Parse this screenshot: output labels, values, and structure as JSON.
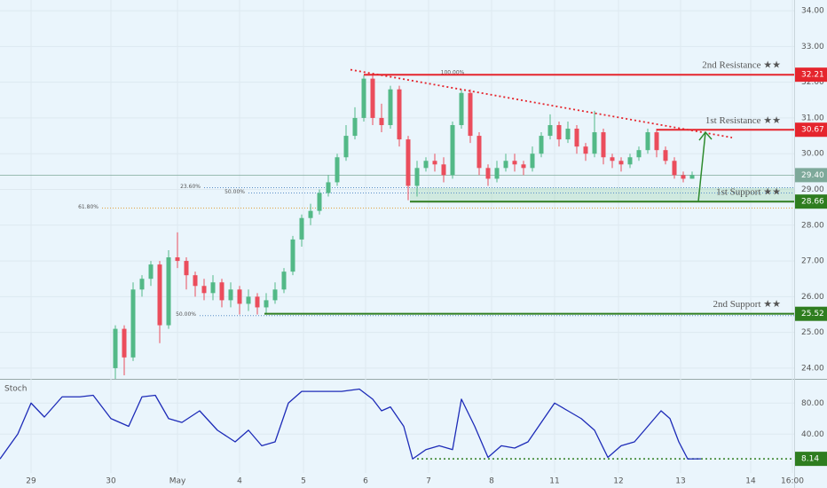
{
  "chart_data": [
    {
      "type": "candlestick",
      "xlim": [
        0,
        895
      ],
      "ylim": [
        23.7,
        34.3
      ],
      "xticks": [
        {
          "value": 35,
          "label": "29"
        },
        {
          "value": 125,
          "label": "30"
        },
        {
          "value": 200,
          "label": "May"
        },
        {
          "value": 270,
          "label": "4"
        },
        {
          "value": 342,
          "label": "5"
        },
        {
          "value": 412,
          "label": "6"
        },
        {
          "value": 483,
          "label": "7"
        },
        {
          "value": 554,
          "label": "8"
        },
        {
          "value": 625,
          "label": "11"
        },
        {
          "value": 697,
          "label": "12"
        },
        {
          "value": 767,
          "label": "13"
        },
        {
          "value": 846,
          "label": "14"
        },
        {
          "value": 893,
          "label": "16:00"
        }
      ],
      "yticks": [
        {
          "value": 34,
          "label": "34.00"
        },
        {
          "value": 33,
          "label": "33.00"
        },
        {
          "value": 32,
          "label": "32.00"
        },
        {
          "value": 31,
          "label": "31.00"
        },
        {
          "value": 30,
          "label": "30.00"
        },
        {
          "value": 29,
          "label": "29.00"
        },
        {
          "value": 28,
          "label": "28.00"
        },
        {
          "value": 27,
          "label": "27.00"
        },
        {
          "value": 26,
          "label": "26.00"
        },
        {
          "value": 25,
          "label": "25.00"
        },
        {
          "value": 24,
          "label": "24.00"
        }
      ],
      "grid": true,
      "up_color": "#53b987",
      "down_color": "#eb4d5c",
      "x": [
        130,
        140,
        150,
        160,
        170,
        180,
        190,
        200,
        210,
        220,
        230,
        240,
        250,
        260,
        270,
        280,
        290,
        300,
        310,
        320,
        330,
        340,
        350,
        360,
        370,
        380,
        390,
        400,
        410,
        420,
        430,
        440,
        450,
        460,
        470,
        480,
        490,
        500,
        510,
        520,
        530,
        540,
        550,
        560,
        570,
        580,
        590,
        600,
        610,
        620,
        630,
        640,
        650,
        660,
        670,
        680,
        690,
        700,
        710,
        720,
        730,
        740,
        750,
        760,
        770,
        780
      ],
      "open": [
        24.0,
        25.1,
        24.3,
        26.2,
        26.5,
        26.9,
        25.2,
        27.1,
        27.0,
        26.6,
        26.3,
        26.1,
        26.4,
        25.9,
        26.2,
        25.8,
        26.0,
        25.7,
        25.9,
        26.2,
        26.7,
        27.6,
        28.2,
        28.4,
        28.9,
        29.2,
        29.9,
        30.5,
        31.0,
        32.1,
        31.0,
        30.8,
        31.8,
        30.4,
        29.1,
        29.6,
        29.8,
        29.7,
        29.4,
        30.8,
        31.7,
        30.5,
        29.6,
        29.3,
        29.6,
        29.8,
        29.7,
        29.6,
        30.0,
        30.5,
        30.8,
        30.4,
        30.7,
        30.2,
        30.0,
        30.6,
        29.9,
        29.8,
        29.7,
        29.9,
        30.1,
        30.6,
        30.1,
        29.8,
        29.4,
        29.3
      ],
      "high": [
        25.2,
        25.2,
        26.4,
        26.6,
        27.0,
        27.0,
        27.3,
        27.8,
        27.1,
        26.7,
        26.5,
        26.6,
        26.5,
        26.4,
        26.3,
        26.2,
        26.1,
        26.1,
        26.4,
        26.8,
        27.7,
        28.3,
        28.6,
        29.0,
        29.4,
        30.0,
        30.8,
        31.3,
        32.2,
        32.2,
        31.4,
        31.9,
        31.9,
        30.5,
        29.8,
        29.9,
        30.0,
        29.9,
        30.9,
        31.8,
        31.8,
        30.6,
        29.7,
        29.8,
        30.0,
        30.0,
        29.8,
        30.2,
        30.6,
        31.1,
        30.9,
        30.9,
        30.8,
        30.3,
        31.2,
        30.7,
        30.0,
        29.9,
        30.0,
        30.2,
        30.7,
        30.7,
        30.2,
        29.9,
        29.5,
        29.5
      ],
      "low": [
        23.7,
        23.8,
        24.2,
        26.0,
        26.3,
        24.7,
        25.1,
        26.8,
        26.2,
        26.0,
        25.9,
        25.9,
        25.7,
        25.7,
        25.5,
        25.6,
        25.5,
        25.5,
        25.8,
        26.1,
        26.6,
        27.4,
        28.0,
        28.3,
        28.8,
        29.1,
        29.8,
        30.4,
        30.9,
        30.8,
        30.6,
        30.7,
        30.2,
        28.7,
        28.8,
        29.5,
        29.5,
        29.2,
        29.3,
        30.7,
        30.3,
        29.4,
        29.1,
        29.2,
        29.5,
        29.5,
        29.4,
        29.5,
        29.9,
        30.4,
        30.2,
        30.3,
        30.0,
        29.8,
        29.9,
        29.7,
        29.6,
        29.5,
        29.6,
        29.8,
        30.0,
        29.9,
        29.7,
        29.3,
        29.2,
        29.3
      ],
      "close": [
        25.1,
        24.3,
        26.2,
        26.5,
        26.9,
        25.2,
        27.1,
        27.0,
        26.6,
        26.3,
        26.1,
        26.4,
        25.9,
        26.2,
        25.8,
        26.0,
        25.7,
        25.9,
        26.2,
        26.7,
        27.6,
        28.2,
        28.4,
        28.9,
        29.2,
        29.9,
        30.5,
        31.0,
        32.1,
        31.0,
        30.8,
        31.8,
        30.4,
        29.1,
        29.6,
        29.8,
        29.7,
        29.4,
        30.8,
        31.7,
        30.5,
        29.6,
        29.3,
        29.6,
        29.8,
        29.7,
        29.6,
        30.0,
        30.5,
        30.8,
        30.4,
        30.7,
        30.2,
        30.0,
        30.6,
        29.9,
        29.8,
        29.7,
        29.9,
        30.1,
        30.6,
        30.1,
        29.8,
        29.4,
        29.3,
        29.4
      ],
      "levels": [
        {
          "label": "2nd Resistance ★★",
          "value": 32.21,
          "start": 410,
          "color": "#e5252d"
        },
        {
          "label": "1st Resistance ★★",
          "value": 30.67,
          "start": 740,
          "color": "#e5252d"
        },
        {
          "label": "1st Support ★★",
          "value": 28.66,
          "start": 462,
          "color": "#2e7d1f"
        },
        {
          "label": "2nd Support ★★",
          "value": 25.52,
          "start": 298,
          "color": "#2e7d1f"
        }
      ],
      "last_price": {
        "value": 29.4,
        "label": "29.40",
        "color": "#7ea99a"
      },
      "fib": [
        {
          "label": "23.60%",
          "price": 29.05,
          "start": 230,
          "color": "#5b8fc7"
        },
        {
          "label": "50.00%",
          "price": 28.9,
          "start": 280,
          "color": "#5b8fc7"
        },
        {
          "label": "61.80%",
          "price": 28.48,
          "start": 115,
          "color": "#e0a040"
        },
        {
          "label": "50.00%",
          "price": 25.47,
          "start": 225,
          "color": "#5b8fc7"
        }
      ],
      "top_fib_label": "100.00%",
      "support_zone": {
        "x": [
          462,
          895
        ],
        "y": [
          28.66,
          29.05
        ],
        "color": "#9fd3a8"
      },
      "trendline": {
        "x": [
          395,
          825
        ],
        "y": [
          32.35,
          30.45
        ],
        "color": "#e5252d"
      },
      "arrow": {
        "x": [
          787,
          795
        ],
        "y": [
          28.66,
          30.6
        ],
        "color": "#2e8b2e"
      }
    },
    {
      "type": "line",
      "title": "Stoch",
      "xlim": [
        0,
        895
      ],
      "ylim": [
        -10,
        110
      ],
      "yticks": [
        {
          "value": 80,
          "label": "80.00"
        },
        {
          "value": 40,
          "label": "40.00"
        }
      ],
      "series": [
        {
          "name": "Stoch",
          "color": "#1d2bb8",
          "x": [
            0,
            20,
            35,
            50,
            70,
            90,
            105,
            125,
            145,
            160,
            175,
            190,
            205,
            225,
            245,
            265,
            280,
            295,
            310,
            325,
            340,
            360,
            385,
            405,
            420,
            430,
            440,
            455,
            465,
            480,
            495,
            510,
            520,
            535,
            550,
            565,
            580,
            595,
            610,
            625,
            640,
            655,
            670,
            685,
            700,
            715,
            730,
            745,
            755,
            765,
            775,
            790
          ],
          "values": [
            8,
            40,
            80,
            62,
            88,
            88,
            90,
            60,
            50,
            88,
            90,
            60,
            55,
            70,
            45,
            30,
            45,
            25,
            30,
            80,
            95,
            95,
            95,
            98,
            85,
            70,
            75,
            50,
            8,
            20,
            25,
            20,
            85,
            50,
            10,
            25,
            22,
            30,
            55,
            80,
            70,
            60,
            45,
            10,
            25,
            30,
            50,
            70,
            60,
            30,
            8,
            8.14
          ]
        }
      ],
      "oversold": {
        "value": 8.14,
        "start": 470,
        "color": "#2e7d1f"
      }
    }
  ]
}
